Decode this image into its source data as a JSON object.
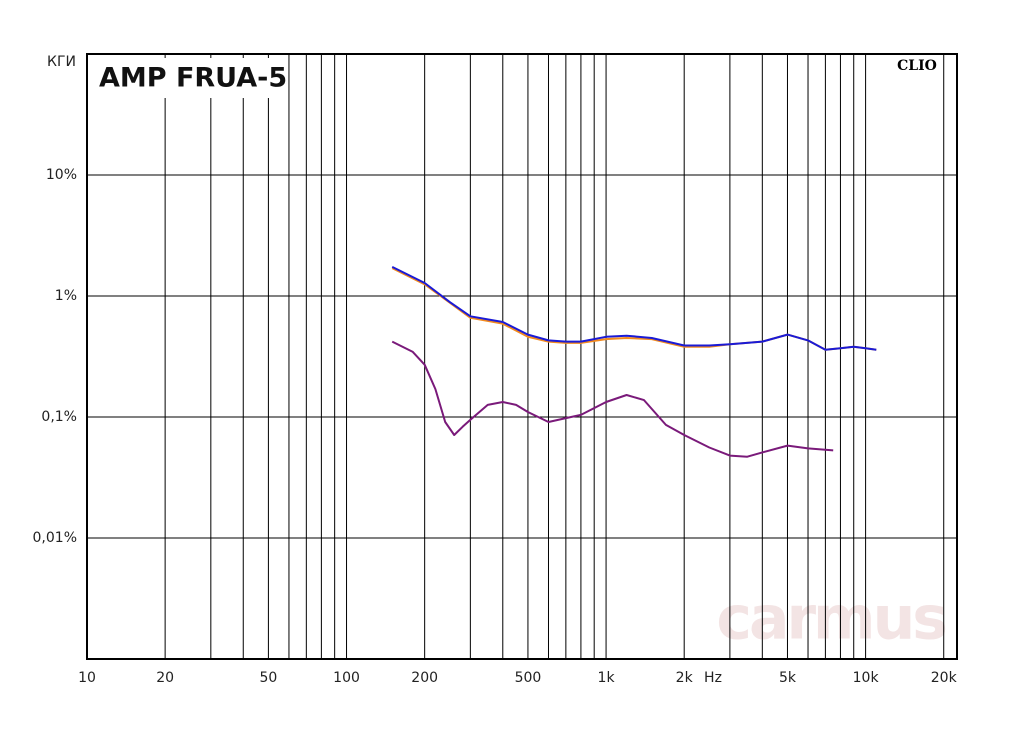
{
  "chart_data": {
    "type": "line",
    "title": "AMP FRUA-5",
    "y_label": "КГИ",
    "x_label": "Hz",
    "brand": "CLIO",
    "watermark": "carmus",
    "log_x": true,
    "log_y": true,
    "grid": true,
    "xlim": [
      10,
      22500
    ],
    "ylim": [
      0.001,
      100
    ],
    "xticks": [
      10,
      20,
      50,
      100,
      200,
      500,
      {
        "value": 1000,
        "label": "1k"
      },
      {
        "value": 2000,
        "label": "2k"
      },
      {
        "value": 5000,
        "label": "5k"
      },
      {
        "value": 10000,
        "label": "10k"
      },
      {
        "value": 20000,
        "label": "20k"
      }
    ],
    "minor_xticks": [
      30,
      40,
      60,
      70,
      80,
      90,
      300,
      400,
      600,
      700,
      800,
      900,
      3000,
      4000,
      6000,
      7000,
      8000,
      9000
    ],
    "yticks": [
      {
        "value": 10,
        "label": "10%"
      },
      {
        "value": 1,
        "label": "1%"
      },
      {
        "value": 0.1,
        "label": "0,1%"
      },
      {
        "value": 0.01,
        "label": "0,01%"
      }
    ],
    "series": [
      {
        "color": "#f28a1e",
        "x": [
          150,
          200,
          250,
          300,
          400,
          500,
          600,
          700,
          800,
          1000,
          1200,
          1500,
          2000,
          2500,
          3000,
          4000,
          5000,
          6000,
          7000,
          8000,
          9000,
          10000,
          11000
        ],
        "values": [
          1.7,
          1.25,
          0.88,
          0.66,
          0.59,
          0.46,
          0.42,
          0.41,
          0.41,
          0.44,
          0.45,
          0.44,
          0.38,
          0.38,
          0.4,
          0.42,
          0.48,
          0.43,
          0.36,
          0.37,
          0.38,
          0.37,
          0.36
        ]
      },
      {
        "color": "#1a1ad6",
        "x": [
          150,
          200,
          250,
          300,
          400,
          500,
          600,
          700,
          800,
          1000,
          1200,
          1500,
          2000,
          2500,
          3000,
          4000,
          5000,
          6000,
          7000,
          8000,
          9000,
          10000,
          11000
        ],
        "values": [
          1.74,
          1.28,
          0.89,
          0.68,
          0.61,
          0.48,
          0.43,
          0.42,
          0.42,
          0.46,
          0.47,
          0.45,
          0.39,
          0.39,
          0.4,
          0.42,
          0.48,
          0.43,
          0.36,
          0.37,
          0.38,
          0.37,
          0.36
        ]
      },
      {
        "color": "#7a1a7a",
        "x": [
          150,
          180,
          200,
          220,
          240,
          260,
          280,
          300,
          350,
          400,
          450,
          500,
          600,
          700,
          800,
          1000,
          1200,
          1400,
          1700,
          2000,
          2500,
          3000,
          3500,
          4000,
          5000,
          6000,
          7500
        ],
        "values": [
          0.42,
          0.345,
          0.27,
          0.17,
          0.091,
          0.071,
          0.083,
          0.095,
          0.126,
          0.133,
          0.126,
          0.11,
          0.091,
          0.098,
          0.104,
          0.133,
          0.152,
          0.138,
          0.086,
          0.071,
          0.056,
          0.048,
          0.047,
          0.051,
          0.058,
          0.055,
          0.053
        ]
      }
    ]
  }
}
